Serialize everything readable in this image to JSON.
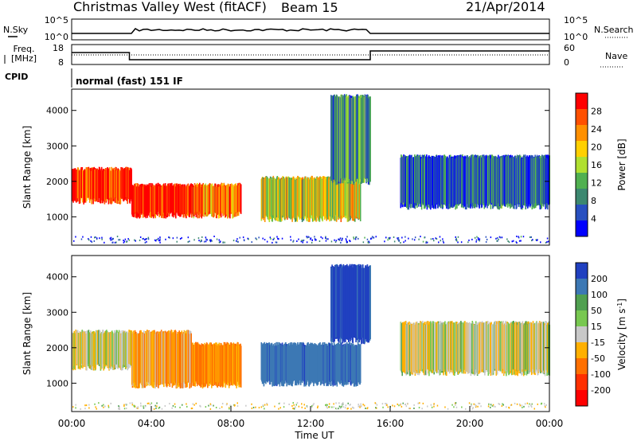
{
  "header": {
    "station": "Christmas Valley West (fitACF)",
    "beam": "Beam 15",
    "date": "21/Apr/2014"
  },
  "top_panels": {
    "nsky_label": "N.Sky",
    "nsky_ticks": [
      "10^5",
      "10^0"
    ],
    "nsearch_label": "N.Search",
    "nsearch_ticks": [
      "10^5",
      "10^0"
    ],
    "freq_label_1": "Freq.",
    "freq_label_2": "[MHz]",
    "freq_ticks": [
      "18",
      "8"
    ],
    "nave_label": "Nave",
    "nave_ticks": [
      "60",
      "0"
    ],
    "cpid_label": "CPID",
    "cpid_value": "normal (fast) 151 IF"
  },
  "chart_data": [
    {
      "type": "heatmap",
      "name": "power",
      "ylabel": "Slant Range [km]",
      "yticks": [
        "4000",
        "3000",
        "2000",
        "1000"
      ],
      "ylim": [
        200,
        4600
      ],
      "xlim": [
        0,
        24
      ],
      "colorbar": {
        "label": "Power [dB]",
        "ticks": [
          "28",
          "24",
          "20",
          "16",
          "12",
          "8",
          "4"
        ],
        "colors": [
          "#ff0000",
          "#ff5000",
          "#ff9000",
          "#ffd000",
          "#b0e030",
          "#50b050",
          "#3c8870",
          "#2850c0",
          "#0000ff"
        ]
      },
      "echo_bands": [
        {
          "t0": 0,
          "t1": 3,
          "r0": 1450,
          "r1": 2350,
          "level": 0.9
        },
        {
          "t0": 3,
          "t1": 6,
          "r0": 1050,
          "r1": 1900,
          "level": 0.95
        },
        {
          "t0": 6,
          "t1": 8.5,
          "r0": 1050,
          "r1": 1900,
          "level": 0.75
        },
        {
          "t0": 9.5,
          "t1": 14.5,
          "r0": 950,
          "r1": 2100,
          "level": 0.55
        },
        {
          "t0": 13,
          "t1": 15,
          "r0": 2000,
          "r1": 4400,
          "level": 0.3
        },
        {
          "t0": 16.5,
          "t1": 24,
          "r0": 1300,
          "r1": 2700,
          "level": 0.2
        }
      ]
    },
    {
      "type": "heatmap",
      "name": "velocity",
      "ylabel": "Slant Range [km]",
      "yticks": [
        "4000",
        "3000",
        "2000",
        "1000"
      ],
      "ylim": [
        200,
        4600
      ],
      "xlim": [
        0,
        24
      ],
      "xticks": [
        "00:00",
        "04:00",
        "08:00",
        "12:00",
        "16:00",
        "20:00",
        "00:00"
      ],
      "xlabel": "Time UT",
      "colorbar": {
        "label": "Velocity [m s",
        "label_sup": "-1",
        "label_end": "]",
        "ticks": [
          "200",
          "100",
          "50",
          "15",
          "-15",
          "-50",
          "-100",
          "-200"
        ],
        "colors": [
          "#2040c0",
          "#3c78b4",
          "#50a050",
          "#78c850",
          "#c8c8c8",
          "#ffb000",
          "#ff7000",
          "#ff3000",
          "#ff0000"
        ]
      },
      "echo_bands": [
        {
          "t0": 0,
          "t1": 3,
          "r0": 1450,
          "r1": 2450,
          "v": 0
        },
        {
          "t0": 3,
          "t1": 6,
          "r0": 950,
          "r1": 2450,
          "v": -40
        },
        {
          "t0": 6,
          "t1": 8.5,
          "r0": 950,
          "r1": 2100,
          "v": -60
        },
        {
          "t0": 9.5,
          "t1": 14.5,
          "r0": 1000,
          "r1": 2100,
          "v": 120
        },
        {
          "t0": 13,
          "t1": 15,
          "r0": 2200,
          "r1": 4300,
          "v": 180
        },
        {
          "t0": 16.5,
          "t1": 24,
          "r0": 1300,
          "r1": 2700,
          "v": 0
        }
      ]
    }
  ]
}
